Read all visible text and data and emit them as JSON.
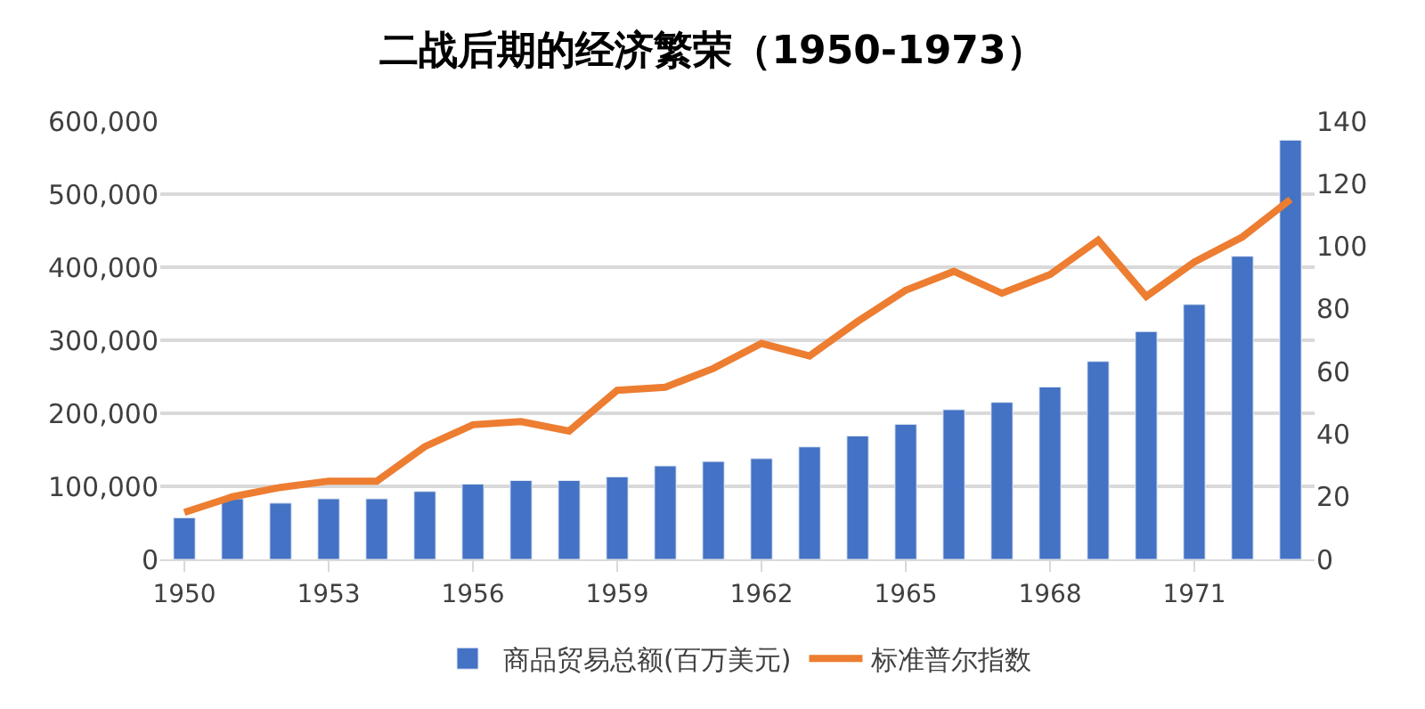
{
  "chart_data": {
    "type": "bar",
    "title": "二战后期的经济繁荣（1950-1973）",
    "categories": [
      "1950",
      null,
      null,
      "1953",
      null,
      null,
      "1956",
      null,
      null,
      "1959",
      null,
      null,
      "1962",
      null,
      null,
      "1965",
      null,
      null,
      "1968",
      null,
      null,
      "1971",
      null,
      null
    ],
    "series": [
      {
        "name": "商品贸易总额(百万美元)",
        "color": "#4472c4",
        "values": [
          57000,
          83000,
          77000,
          83000,
          83000,
          93000,
          103000,
          108000,
          108000,
          113000,
          128000,
          134000,
          138000,
          154000,
          169000,
          185000,
          205000,
          215000,
          236000,
          271000,
          312000,
          349000,
          415000,
          574000
        ]
      },
      {
        "name": "标准普尔指数",
        "type": "line",
        "axis": "y2",
        "color": "#ed7d31",
        "values": [
          15,
          20,
          23,
          25,
          25,
          36,
          43,
          44,
          41,
          54,
          55,
          61,
          69,
          65,
          76,
          86,
          92,
          85,
          91,
          102,
          84,
          95,
          103,
          115
        ]
      }
    ],
    "ylim": [
      0,
      600000
    ],
    "yticks": [
      {
        "value": 0,
        "label": "0"
      },
      {
        "value": 100000,
        "label": "100,000"
      },
      {
        "value": 200000,
        "label": "200,000"
      },
      {
        "value": 300000,
        "label": "300,000"
      },
      {
        "value": 400000,
        "label": "400,000"
      },
      {
        "value": 500000,
        "label": "500,000"
      },
      {
        "value": 600000,
        "label": "600,000"
      }
    ],
    "y2lim": [
      0,
      140
    ],
    "y2ticks": [
      0,
      20,
      40,
      60,
      80,
      100,
      120,
      140
    ],
    "grid": "y",
    "legend": "bottom",
    "marker": "none",
    "line_style": "solid"
  }
}
